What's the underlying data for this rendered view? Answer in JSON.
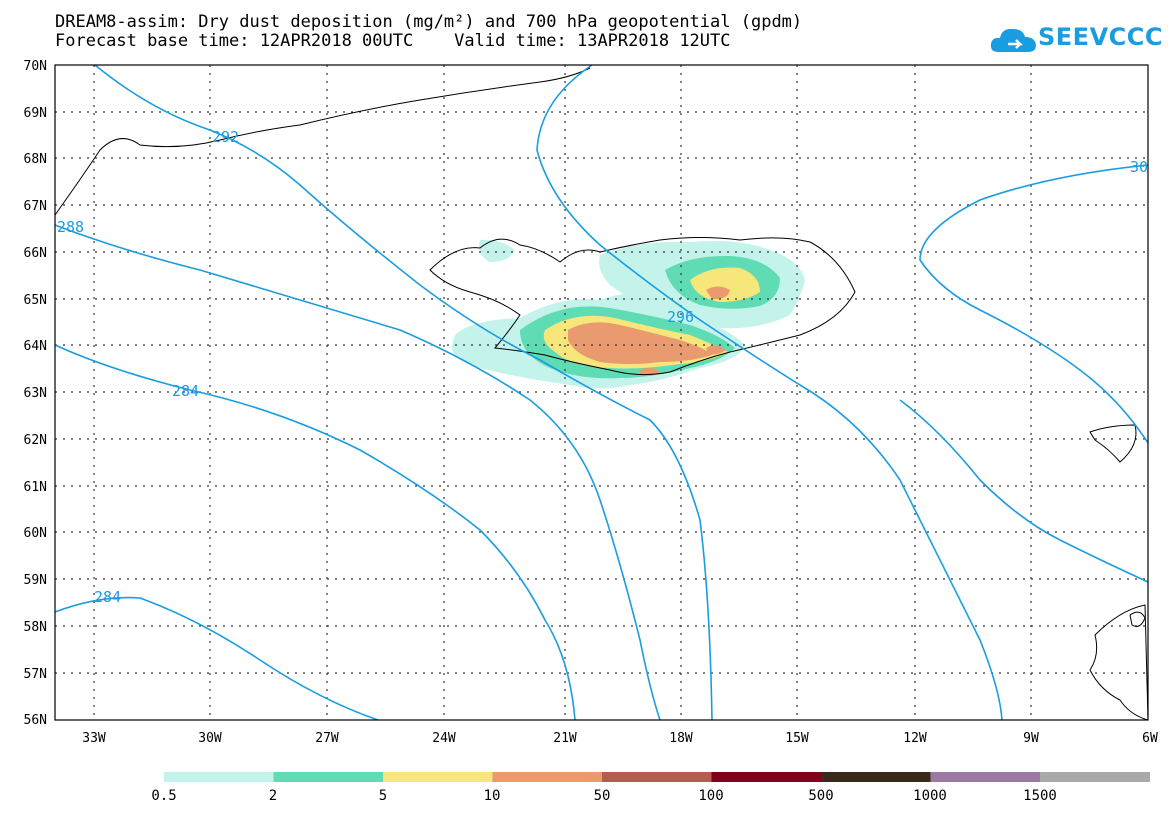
{
  "header": {
    "title_line1": "DREAM8-assim: Dry dust deposition (mg/m²) and 700 hPa geopotential (gpdm)",
    "title_line2": "Forecast base time: 12APR2018 00UTC    Valid time: 13APR2018 12UTC"
  },
  "logo": {
    "text": "SEEVCCC",
    "icon": "cloud-icon",
    "color": "#1a9de0"
  },
  "map": {
    "latitude_labels": [
      "70N",
      "69N",
      "68N",
      "67N",
      "66N",
      "65N",
      "64N",
      "63N",
      "62N",
      "61N",
      "60N",
      "59N",
      "58N",
      "57N",
      "56N"
    ],
    "longitude_labels": [
      "33W",
      "30W",
      "27W",
      "24W",
      "21W",
      "18W",
      "15W",
      "12W",
      "9W",
      "6W"
    ],
    "contour_labels": [
      "292",
      "288",
      "284",
      "284",
      "296",
      "30"
    ],
    "contour_color": "#1a9de0"
  },
  "legend": {
    "labels": [
      "0.5",
      "2",
      "5",
      "10",
      "50",
      "100",
      "500",
      "1000",
      "1500"
    ],
    "colors": [
      "#c3f3ea",
      "#5fdcb4",
      "#f7e67a",
      "#e99a6f",
      "#b65c4f",
      "#82001c",
      "#3a2a1b",
      "#9c79a2",
      "#a9a9a9"
    ]
  }
}
